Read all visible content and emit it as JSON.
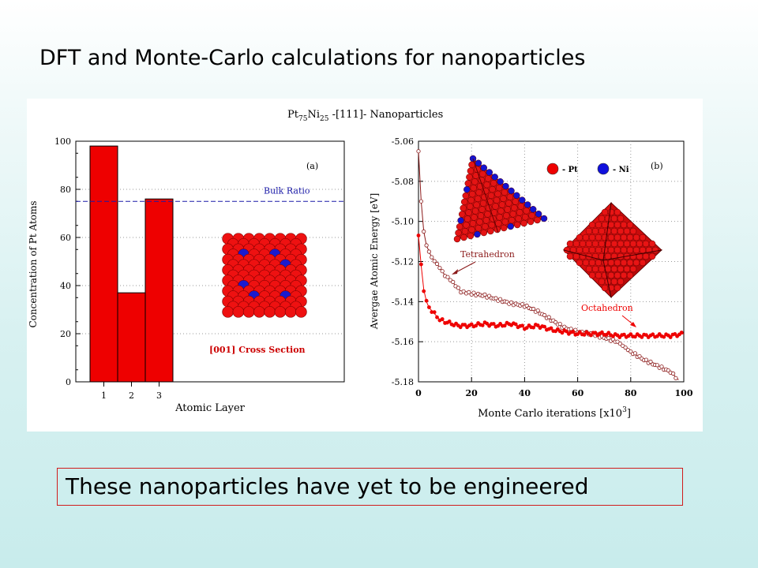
{
  "slide": {
    "title": "DFT and Monte-Carlo calculations for nanoparticles",
    "caption": "These nanoparticles have yet to be engineered",
    "caption_border_color": "#d01c1c"
  },
  "figure": {
    "title_prefix": "Pt",
    "title_sub1": "75",
    "title_mid": "Ni",
    "title_sub2": "25",
    "title_suffix": " -[111]- Nanoparticles"
  },
  "chart_data": [
    {
      "type": "bar",
      "panel_label": "(a)",
      "categories": [
        "1",
        "2",
        "3"
      ],
      "values": [
        98,
        37,
        76
      ],
      "ylim": [
        0,
        100
      ],
      "yticks": [
        "0",
        "20",
        "40",
        "60",
        "80",
        "100"
      ],
      "xlabel": "Atomic Layer",
      "ylabel": "Concentration of Pt Atoms",
      "bar_color": "#ee0000",
      "reference_line": {
        "label": "Bulk Ratio",
        "value": 75,
        "color": "#1a1aa8"
      },
      "inset_label": "[001] Cross Section",
      "inset_label_color": "#cc0000"
    },
    {
      "type": "line",
      "panel_label": "(b)",
      "xlabel": "Monte Carlo iterations [x10",
      "xlabel_sup": "3",
      "xlabel_end": "]",
      "ylabel": "Avergae Atomic Energy [eV]",
      "xlim": [
        0,
        100
      ],
      "ylim": [
        -5.18,
        -5.06
      ],
      "xticks": [
        "0",
        "20",
        "40",
        "60",
        "80",
        "100"
      ],
      "yticks": [
        "-5.06",
        "-5.08",
        "-5.10",
        "-5.12",
        "-5.14",
        "-5.16",
        "-5.18"
      ],
      "legend": [
        {
          "label": "- Pt",
          "color": "#ee0000"
        },
        {
          "label": "- Ni",
          "color": "#1010dd"
        }
      ],
      "series": [
        {
          "name": "Tetrahedron",
          "color": "#8b1a1a",
          "marker": "open-circle",
          "points": [
            [
              0,
              -5.065
            ],
            [
              1,
              -5.09
            ],
            [
              2,
              -5.105
            ],
            [
              3,
              -5.112
            ],
            [
              5,
              -5.118
            ],
            [
              8,
              -5.123
            ],
            [
              10,
              -5.127
            ],
            [
              12,
              -5.129
            ],
            [
              14,
              -5.132
            ],
            [
              16,
              -5.135
            ],
            [
              20,
              -5.136
            ],
            [
              25,
              -5.137
            ],
            [
              30,
              -5.139
            ],
            [
              35,
              -5.141
            ],
            [
              40,
              -5.142
            ],
            [
              45,
              -5.145
            ],
            [
              50,
              -5.149
            ],
            [
              55,
              -5.153
            ],
            [
              60,
              -5.155
            ],
            [
              65,
              -5.156
            ],
            [
              70,
              -5.158
            ],
            [
              75,
              -5.16
            ],
            [
              78,
              -5.163
            ],
            [
              80,
              -5.165
            ],
            [
              85,
              -5.169
            ],
            [
              90,
              -5.172
            ],
            [
              95,
              -5.175
            ],
            [
              98,
              -5.179
            ]
          ]
        },
        {
          "name": "Octahedron",
          "color": "#ee0000",
          "marker": "filled-circle",
          "points": [
            [
              0,
              -5.107
            ],
            [
              1,
              -5.122
            ],
            [
              2,
              -5.134
            ],
            [
              3,
              -5.14
            ],
            [
              4,
              -5.143
            ],
            [
              6,
              -5.146
            ],
            [
              8,
              -5.149
            ],
            [
              10,
              -5.15
            ],
            [
              15,
              -5.152
            ],
            [
              20,
              -5.152
            ],
            [
              25,
              -5.151
            ],
            [
              30,
              -5.152
            ],
            [
              35,
              -5.151
            ],
            [
              40,
              -5.153
            ],
            [
              45,
              -5.152
            ],
            [
              50,
              -5.154
            ],
            [
              55,
              -5.155
            ],
            [
              60,
              -5.156
            ],
            [
              65,
              -5.156
            ],
            [
              70,
              -5.156
            ],
            [
              75,
              -5.157
            ],
            [
              80,
              -5.157
            ],
            [
              85,
              -5.157
            ],
            [
              90,
              -5.157
            ],
            [
              95,
              -5.157
            ],
            [
              100,
              -5.156
            ]
          ]
        }
      ],
      "annotations": [
        {
          "text": "Tetrahedron",
          "color": "#8b1a1a"
        },
        {
          "text": "Octahedron",
          "color": "#ee0000"
        }
      ]
    }
  ]
}
